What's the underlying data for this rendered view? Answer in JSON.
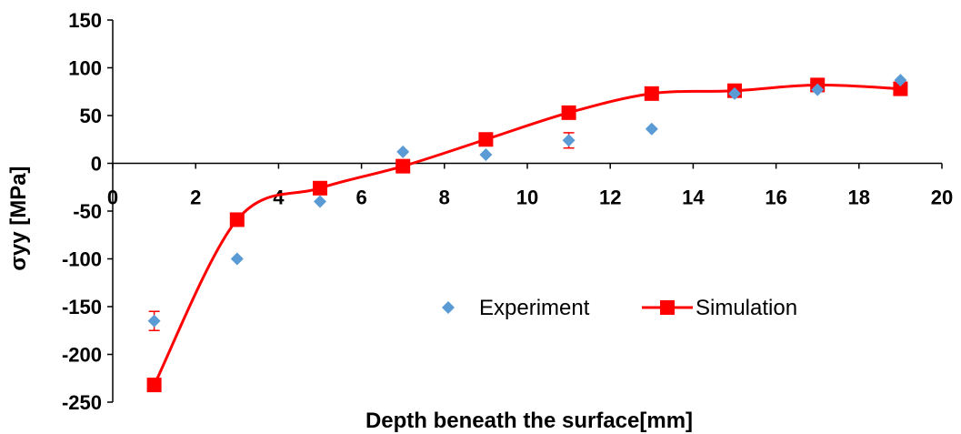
{
  "chart_data": {
    "type": "scatter",
    "title": "",
    "xlabel": "Depth beneath the surface[mm]",
    "ylabel": "σyy [MPa]",
    "xlim": [
      0,
      20
    ],
    "ylim": [
      -250,
      150
    ],
    "x_ticks": [
      0,
      2,
      4,
      6,
      8,
      10,
      12,
      14,
      16,
      18,
      20
    ],
    "y_ticks": [
      150,
      100,
      50,
      0,
      -50,
      -100,
      -150,
      -200,
      -250
    ],
    "grid": false,
    "legend_position": "center-right",
    "colors": {
      "experiment": "#5b9bd5",
      "simulation": "#ff0000"
    },
    "series": [
      {
        "name": "Experiment",
        "marker": "diamond",
        "line": false,
        "x": [
          1,
          3,
          5,
          7,
          9,
          11,
          13,
          15,
          17,
          19
        ],
        "y": [
          -165,
          -100,
          -40,
          12,
          9,
          24,
          36,
          73,
          77,
          87
        ],
        "error": [
          10,
          0,
          0,
          0,
          0,
          8,
          0,
          0,
          0,
          0
        ]
      },
      {
        "name": "Simulation",
        "marker": "square",
        "line": true,
        "smooth": true,
        "x": [
          1,
          3,
          5,
          7,
          9,
          11,
          13,
          15,
          17,
          19
        ],
        "y": [
          -232,
          -59,
          -26,
          -3,
          25,
          53,
          73,
          76,
          82,
          78
        ]
      }
    ]
  }
}
